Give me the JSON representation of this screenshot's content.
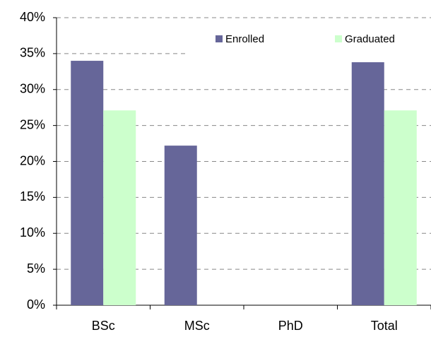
{
  "chart_data": {
    "type": "bar",
    "categories": [
      "BSc",
      "MSc",
      "PhD",
      "Total"
    ],
    "series": [
      {
        "name": "Enrolled",
        "color": "#666699",
        "values": [
          34,
          22.2,
          0,
          33.8
        ]
      },
      {
        "name": "Graduated",
        "color": "#ccffcc",
        "values": [
          27.1,
          0,
          0,
          27.1
        ]
      }
    ],
    "ylim": [
      0,
      40
    ],
    "yticks": [
      {
        "value": 0,
        "label": "0%"
      },
      {
        "value": 5,
        "label": "5%"
      },
      {
        "value": 10,
        "label": "10%"
      },
      {
        "value": 15,
        "label": "15%"
      },
      {
        "value": 20,
        "label": "20%"
      },
      {
        "value": 25,
        "label": "25%"
      },
      {
        "value": 30,
        "label": "30%"
      },
      {
        "value": 35,
        "label": "35%"
      },
      {
        "value": 40,
        "label": "40%"
      }
    ],
    "grid": true,
    "legend": "top-right"
  }
}
